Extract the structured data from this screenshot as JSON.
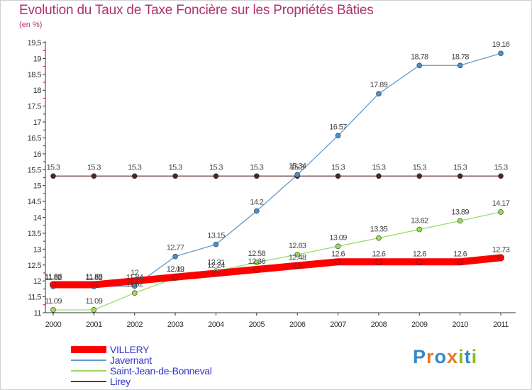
{
  "title": "Evolution du Taux de Taxe Foncière sur les Propriétés Bâties",
  "subtitle": "(en %)",
  "logo": "Proxiti",
  "chart_data": {
    "type": "line",
    "title": "Evolution du Taux de Taxe Foncière sur les Propriétés Bâties",
    "ylabel": "(en %)",
    "xlabel": "",
    "x": [
      "2000",
      "2001",
      "2002",
      "2003",
      "2004",
      "2005",
      "2006",
      "2007",
      "2008",
      "2009",
      "2010",
      "2011"
    ],
    "ylim": [
      11,
      19.5
    ],
    "yticks": [
      "11",
      "11.5",
      "12",
      "12.5",
      "13",
      "13.5",
      "14",
      "14.5",
      "15",
      "15.5",
      "16",
      "16.5",
      "17",
      "17.5",
      "18",
      "18.5",
      "19",
      "19.5"
    ],
    "series": [
      {
        "name": "VILLERY",
        "color": "#ff0000",
        "values": [
          11.88,
          11.88,
          12,
          12.12,
          12.24,
          12.36,
          12.48,
          12.6,
          12.6,
          12.6,
          12.6,
          12.73
        ],
        "labels": [
          "11.88",
          "11.88",
          "12",
          "12.12",
          "12.24",
          "12.36",
          "12.48",
          "12.6",
          "12.6",
          "12.6",
          "12.6",
          "12.73"
        ]
      },
      {
        "name": "Javernant",
        "color": "#6699cc",
        "values": [
          11.82,
          11.82,
          11.84,
          12.77,
          13.15,
          14.2,
          15.34,
          16.57,
          17.89,
          18.78,
          18.78,
          19.16
        ],
        "labels": [
          "11.82",
          "11.82",
          "11.84",
          "12.77",
          "13.15",
          "14.2",
          "15.34",
          "16.57",
          "17.89",
          "18.78",
          "18.78",
          "19.16"
        ]
      },
      {
        "name": "Saint-Jean-de-Bonneval",
        "color": "#99dd66",
        "values": [
          11.09,
          11.09,
          11.62,
          12.09,
          12.31,
          12.58,
          12.83,
          13.09,
          13.35,
          13.62,
          13.89,
          14.17
        ],
        "labels": [
          "11.09",
          "11.09",
          "11.62",
          "12.09",
          "12.31",
          "12.58",
          "12.83",
          "13.09",
          "13.35",
          "13.62",
          "13.89",
          "14.17"
        ]
      },
      {
        "name": "Lirey",
        "color": "#663333",
        "values": [
          15.3,
          15.3,
          15.3,
          15.3,
          15.3,
          15.3,
          15.3,
          15.3,
          15.3,
          15.3,
          15.3,
          15.3
        ],
        "labels": [
          "15.3",
          "15.3",
          "15.3",
          "15.3",
          "15.3",
          "15.3",
          "15.3",
          "15.3",
          "15.3",
          "15.3",
          "15.3",
          "15.3"
        ]
      }
    ],
    "legend": "bottom-left",
    "grid": false
  }
}
